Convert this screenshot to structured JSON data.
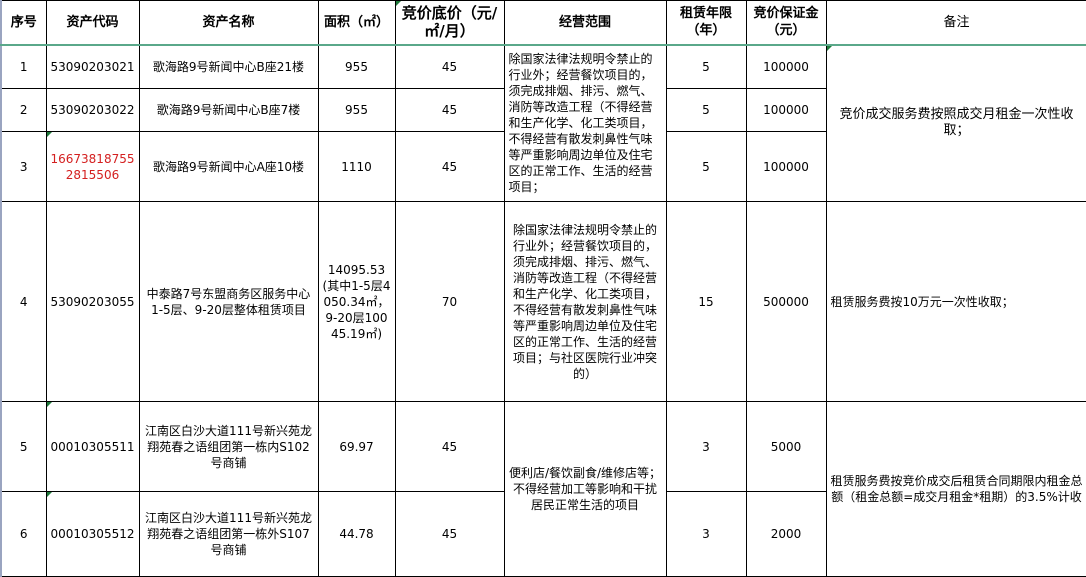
{
  "headers": [
    "序号",
    "资产代码",
    "资产名称",
    "面积（㎡）",
    "竞价底价（元/㎡/月）",
    "经营范围",
    "租赁年限（年）",
    "竞价保证金（元）",
    "备注"
  ],
  "rows": [
    {
      "no": "1",
      "code": "53090203021",
      "name": "歌海路9号新闻中心B座21楼",
      "area": "955",
      "price": "45",
      "term": "5",
      "deposit": "100000"
    },
    {
      "no": "2",
      "code": "53090203022",
      "name": "歌海路9号新闻中心B座7楼",
      "area": "955",
      "price": "45",
      "term": "5",
      "deposit": "100000"
    },
    {
      "no": "3",
      "code": "166738187552815506",
      "name": "歌海路9号新闻中心A座10楼",
      "area": "1110",
      "price": "45",
      "term": "5",
      "deposit": "100000"
    },
    {
      "no": "4",
      "code": "53090203055",
      "name": "中泰路7号东盟商务区服务中心1-5层、9-20层整体租赁项目",
      "area": "14095.53(其中1-5层4050.34㎡，9-20层10045.19㎡)",
      "price": "70",
      "term": "15",
      "deposit": "500000"
    },
    {
      "no": "5",
      "code": "00010305511",
      "name": "江南区白沙大道111号新兴苑龙翔苑春之语组团第一栋内S102号商铺",
      "area": "69.97",
      "price": "45",
      "term": "3",
      "deposit": "5000"
    },
    {
      "no": "6",
      "code": "00010305512",
      "name": "江南区白沙大道111号新兴苑龙翔苑春之语组团第一栋外S107号商铺",
      "area": "44.78",
      "price": "45",
      "term": "3",
      "deposit": "2000"
    }
  ],
  "scope": {
    "group1": "除国家法律法规明令禁止的行业外；经营餐饮项目的，须完成排烟、排污、燃气、消防等改造工程（不得经营和生产化学、化工类项目，不得经营有散发刺鼻性气味等严重影响周边单位及住宅区的正常工作、生活的经营项目；",
    "group2": "除国家法律法规明令禁止的行业外；经营餐饮项目的，须完成排烟、排污、燃气、消防等改造工程（不得经营和生产化学、化工类项目，不得经营有散发刺鼻性气味等严重影响周边单位及住宅区的正常工作、生活的经营项目；与社区医院行业冲突的）",
    "group3": "便利店/餐饮副食/维修店等；不得经营加工等影响和干扰居民正常生活的项目"
  },
  "remarks": {
    "group1": "竞价成交服务费按照成交月租金一次性收取；",
    "group2": "租赁服务费按10万元一次性收取；",
    "group3": "租赁服务费按竞价成交后租赁合同期限内租金总额（租金总额=成交月租金*租期）的3.5%计收"
  },
  "colors": {
    "header_rule": "#5aa88a",
    "red_code": "#d42020",
    "comment_marker": "#1e7a3a"
  }
}
